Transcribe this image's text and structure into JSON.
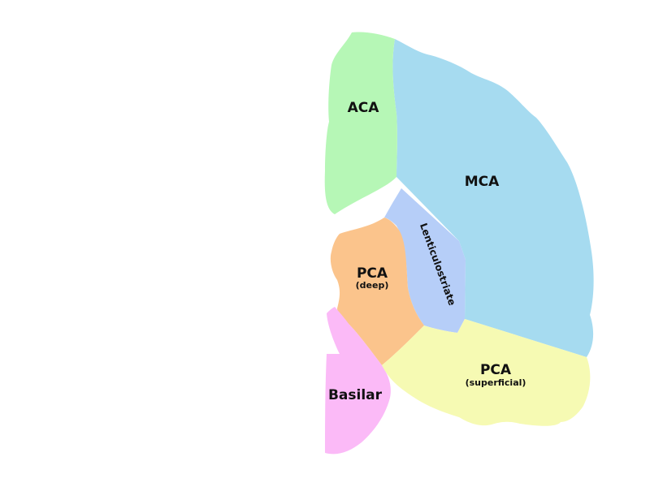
{
  "diagram": {
    "regions": {
      "aca": {
        "label": "ACA",
        "color": "#b6f7b6"
      },
      "mca": {
        "label": "MCA",
        "color": "#a6dbf0"
      },
      "lentic": {
        "label": "Lenticulostriate",
        "color": "#b6cef8"
      },
      "pca_deep": {
        "label": "PCA",
        "sublabel": "(deep)",
        "color": "#fbc48c"
      },
      "basilar": {
        "label": "Basilar",
        "color": "#fbbaf7"
      },
      "pca_sup": {
        "label": "PCA",
        "sublabel": "(superficial)",
        "color": "#f6fab3"
      }
    }
  }
}
